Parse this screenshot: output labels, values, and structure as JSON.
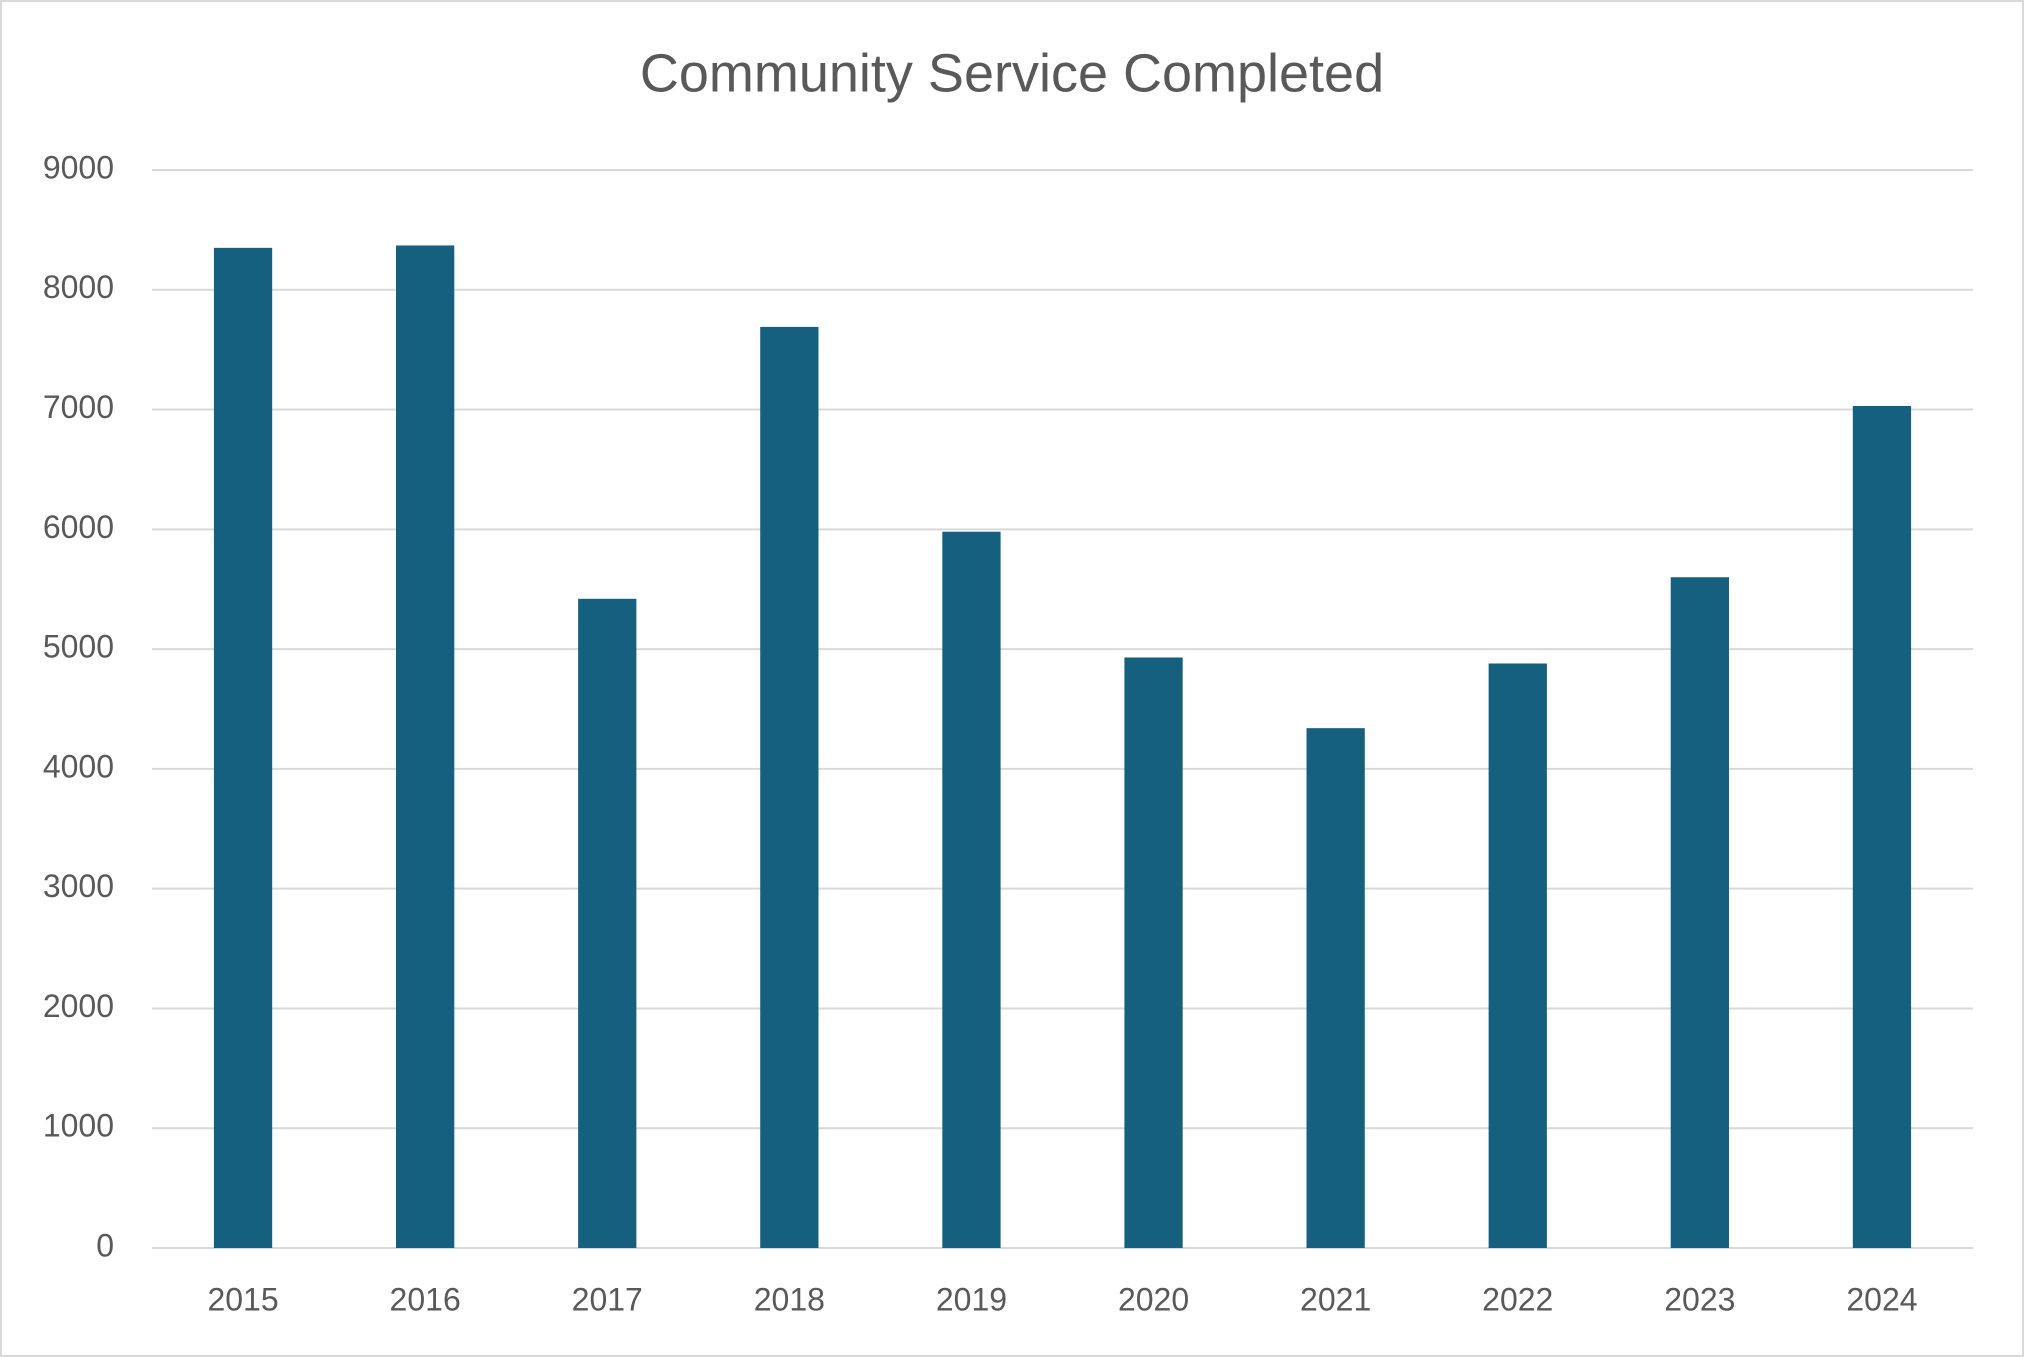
{
  "chart_data": {
    "type": "bar",
    "title": "Community Service Completed",
    "categories": [
      "2015",
      "2016",
      "2017",
      "2018",
      "2019",
      "2020",
      "2021",
      "2022",
      "2023",
      "2024"
    ],
    "values": [
      8350,
      8370,
      5420,
      7690,
      5980,
      4930,
      4340,
      4880,
      5600,
      7030
    ],
    "color": "#15607f",
    "ylim": [
      0,
      9000
    ],
    "yticks": [
      0,
      1000,
      2000,
      3000,
      4000,
      5000,
      6000,
      7000,
      8000,
      9000
    ],
    "grid": true
  }
}
